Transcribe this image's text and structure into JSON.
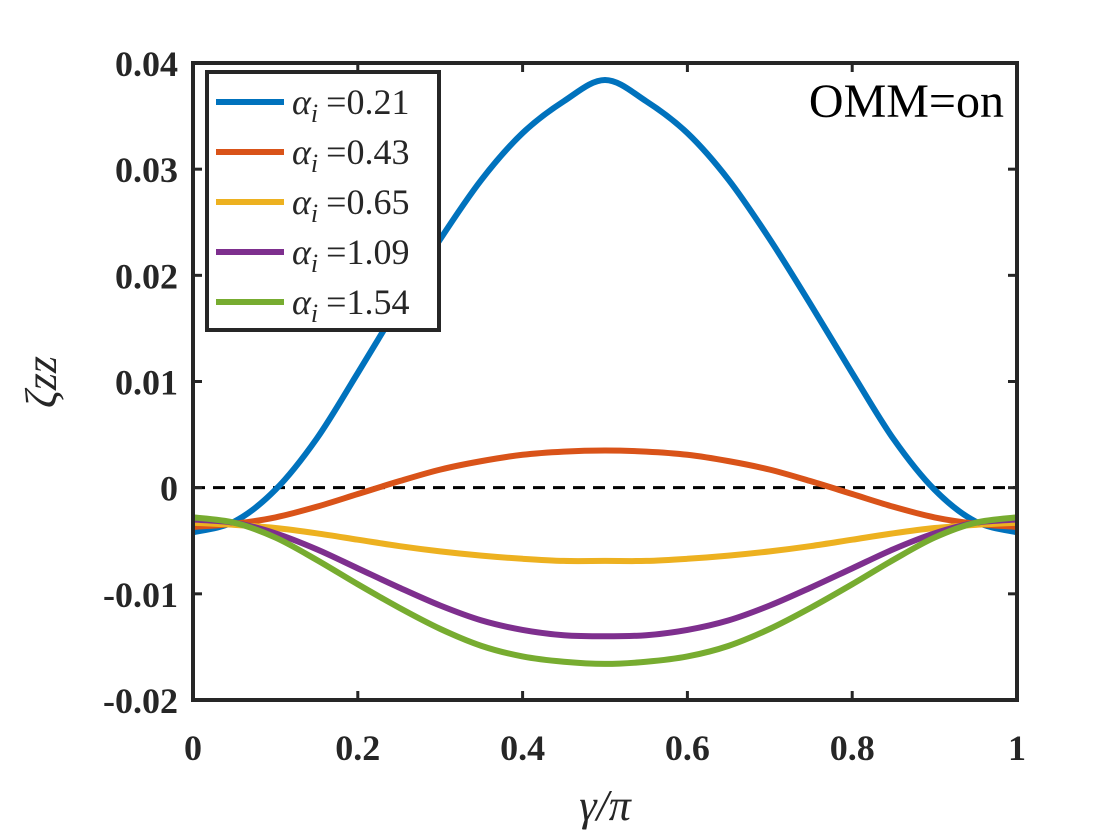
{
  "chart_data": {
    "type": "line",
    "title": "",
    "xlabel": "γ/π",
    "ylabel": "ζzz",
    "xlim": [
      0,
      1
    ],
    "ylim": [
      -0.02,
      0.04
    ],
    "xticks": [
      "0",
      "0.2",
      "0.4",
      "0.6",
      "0.8",
      "1"
    ],
    "yticks": [
      "-0.02",
      "-0.01",
      "0",
      "0.01",
      "0.02",
      "0.03",
      "0.04"
    ],
    "xtick_values": [
      0,
      0.2,
      0.4,
      0.6,
      0.8,
      1
    ],
    "ytick_values": [
      -0.02,
      -0.01,
      0,
      0.01,
      0.02,
      0.03,
      0.04
    ],
    "annotation": "OMM=on",
    "reference_line": {
      "y": 0,
      "style": "dashed",
      "color": "#000000"
    },
    "legend_position": "top-left",
    "legend_symbol": "α",
    "legend_subscript": "i",
    "legend_equals": "=",
    "x": [
      0,
      0.05,
      0.1,
      0.15,
      0.2,
      0.25,
      0.3,
      0.35,
      0.4,
      0.45,
      0.5,
      0.55,
      0.6,
      0.65,
      0.7,
      0.75,
      0.8,
      0.85,
      0.9,
      0.95,
      1
    ],
    "series": [
      {
        "name": "0.21",
        "color": "#0072BD",
        "values": [
          -0.0042,
          -0.0032,
          -0.0002,
          0.0046,
          0.0108,
          0.0172,
          0.0234,
          0.029,
          0.0334,
          0.0364,
          0.0384,
          0.0364,
          0.0334,
          0.029,
          0.0234,
          0.0172,
          0.0108,
          0.0046,
          -0.0002,
          -0.0032,
          -0.0042
        ]
      },
      {
        "name": "0.43",
        "color": "#D95319",
        "values": [
          -0.0037,
          -0.0034,
          -0.0028,
          -0.0018,
          -0.0006,
          0.0006,
          0.0017,
          0.0025,
          0.0031,
          0.0034,
          0.0035,
          0.0034,
          0.0031,
          0.0025,
          0.0017,
          0.0006,
          -0.0006,
          -0.0018,
          -0.0028,
          -0.0034,
          -0.0037
        ]
      },
      {
        "name": "0.65",
        "color": "#EDB120",
        "values": [
          -0.0033,
          -0.0035,
          -0.0038,
          -0.0043,
          -0.0049,
          -0.0055,
          -0.006,
          -0.0064,
          -0.0067,
          -0.0069,
          -0.0069,
          -0.0069,
          -0.0067,
          -0.0064,
          -0.006,
          -0.0055,
          -0.0049,
          -0.0043,
          -0.0038,
          -0.0035,
          -0.0033
        ]
      },
      {
        "name": "1.09",
        "color": "#7E2F8E",
        "values": [
          -0.003,
          -0.0033,
          -0.0043,
          -0.0058,
          -0.0076,
          -0.0094,
          -0.0111,
          -0.0125,
          -0.0134,
          -0.0139,
          -0.014,
          -0.0139,
          -0.0134,
          -0.0125,
          -0.0111,
          -0.0094,
          -0.0076,
          -0.0058,
          -0.0043,
          -0.0033,
          -0.003
        ]
      },
      {
        "name": "1.54",
        "color": "#77AC30",
        "values": [
          -0.0028,
          -0.0033,
          -0.0047,
          -0.0068,
          -0.0091,
          -0.0113,
          -0.0133,
          -0.0149,
          -0.0159,
          -0.0164,
          -0.0166,
          -0.0164,
          -0.0159,
          -0.0149,
          -0.0133,
          -0.0113,
          -0.0091,
          -0.0068,
          -0.0047,
          -0.0033,
          -0.0028
        ]
      }
    ]
  }
}
